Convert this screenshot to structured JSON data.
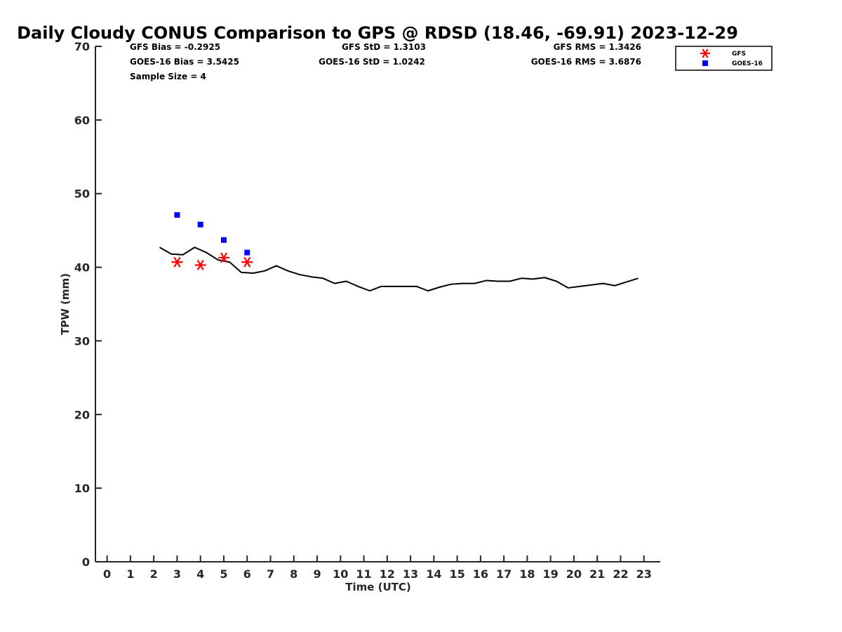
{
  "chart_data": {
    "type": "line",
    "title": "Daily Cloudy CONUS Comparison to GPS @ RDSD (18.46, -69.91) 2023-12-29",
    "xlabel": "Time (UTC)",
    "ylabel": "TPW (mm)",
    "xlim": [
      -0.5,
      23.7
    ],
    "ylim": [
      0,
      70
    ],
    "xticks": [
      0,
      1,
      2,
      3,
      4,
      5,
      6,
      7,
      8,
      9,
      10,
      11,
      12,
      13,
      14,
      15,
      16,
      17,
      18,
      19,
      20,
      21,
      22,
      23
    ],
    "yticks": [
      0,
      10,
      20,
      30,
      40,
      50,
      60,
      70
    ],
    "grid": false,
    "legend_position": "top-right",
    "stats": {
      "gfs_bias": "GFS Bias = -0.2925",
      "goes_bias": "GOES-16 Bias = 3.5425",
      "sample_size": "Sample Size = 4",
      "gfs_std": "GFS StD = 1.3103",
      "goes_std": "GOES-16 StD = 1.0242",
      "gfs_rms": "GFS RMS = 1.3426",
      "goes_rms": "GOES-16 RMS = 3.6876"
    },
    "series": [
      {
        "kind": "line",
        "color": "#000000",
        "x": [
          2.25,
          2.75,
          3.25,
          3.75,
          4.25,
          4.75,
          5.25,
          5.75,
          6.25,
          6.75,
          7.25,
          7.75,
          8.25,
          8.75,
          9.25,
          9.75,
          10.25,
          10.75,
          11.25,
          11.75,
          12.25,
          12.75,
          13.25,
          13.75,
          14.25,
          14.75,
          15.25,
          15.75,
          16.25,
          16.75,
          17.25,
          17.75,
          18.25,
          18.75,
          19.25,
          19.75,
          20.25,
          20.75,
          21.25,
          21.75,
          22.25,
          22.75
        ],
        "y": [
          42.7,
          41.8,
          41.7,
          42.7,
          42.0,
          41.0,
          40.7,
          39.3,
          39.2,
          39.5,
          40.2,
          39.5,
          39.0,
          38.7,
          38.5,
          37.8,
          38.1,
          37.4,
          36.8,
          37.4,
          37.4,
          37.4,
          37.4,
          36.8,
          37.3,
          37.7,
          37.8,
          37.8,
          38.2,
          38.1,
          38.1,
          38.5,
          38.4,
          38.6,
          38.1,
          37.2,
          37.4,
          37.6,
          37.8,
          37.5,
          38.0,
          38.5
        ]
      },
      {
        "name": "GFS",
        "kind": "scatter",
        "marker": "asterisk",
        "color": "#ff0000",
        "x": [
          3,
          4,
          5,
          6
        ],
        "y": [
          40.7,
          40.3,
          41.3,
          40.7
        ]
      },
      {
        "name": "GOES-16",
        "kind": "scatter",
        "marker": "square",
        "color": "#0000ff",
        "x": [
          3,
          4,
          5,
          6
        ],
        "y": [
          47.1,
          45.8,
          43.7,
          42.0
        ]
      }
    ]
  }
}
